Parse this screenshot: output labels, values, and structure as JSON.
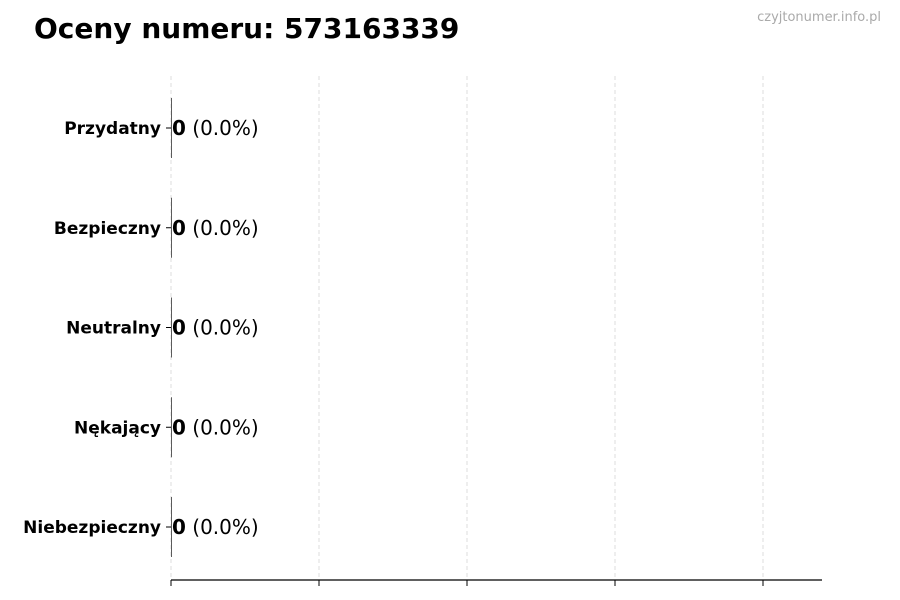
{
  "chart_data": {
    "type": "bar",
    "orientation": "horizontal",
    "title": "Oceny numeru: 573163339",
    "watermark": "czyjtonumer.info.pl",
    "categories": [
      "Przydatny",
      "Bezpieczny",
      "Neutralny",
      "Nękający",
      "Niebezpieczny"
    ],
    "values": [
      0,
      0,
      0,
      0,
      0
    ],
    "data_labels": [
      {
        "count": "0",
        "percent": "(0.0%)"
      },
      {
        "count": "0",
        "percent": "(0.0%)"
      },
      {
        "count": "0",
        "percent": "(0.0%)"
      },
      {
        "count": "0",
        "percent": "(0.0%)"
      },
      {
        "count": "0",
        "percent": "(0.0%)"
      }
    ],
    "x_tick_count": 5,
    "x_tick_labels": [],
    "grid": "vertical dashed",
    "colors": {
      "grid": "#dddddd",
      "axis": "#000000",
      "bar_edge": "#333333"
    }
  }
}
